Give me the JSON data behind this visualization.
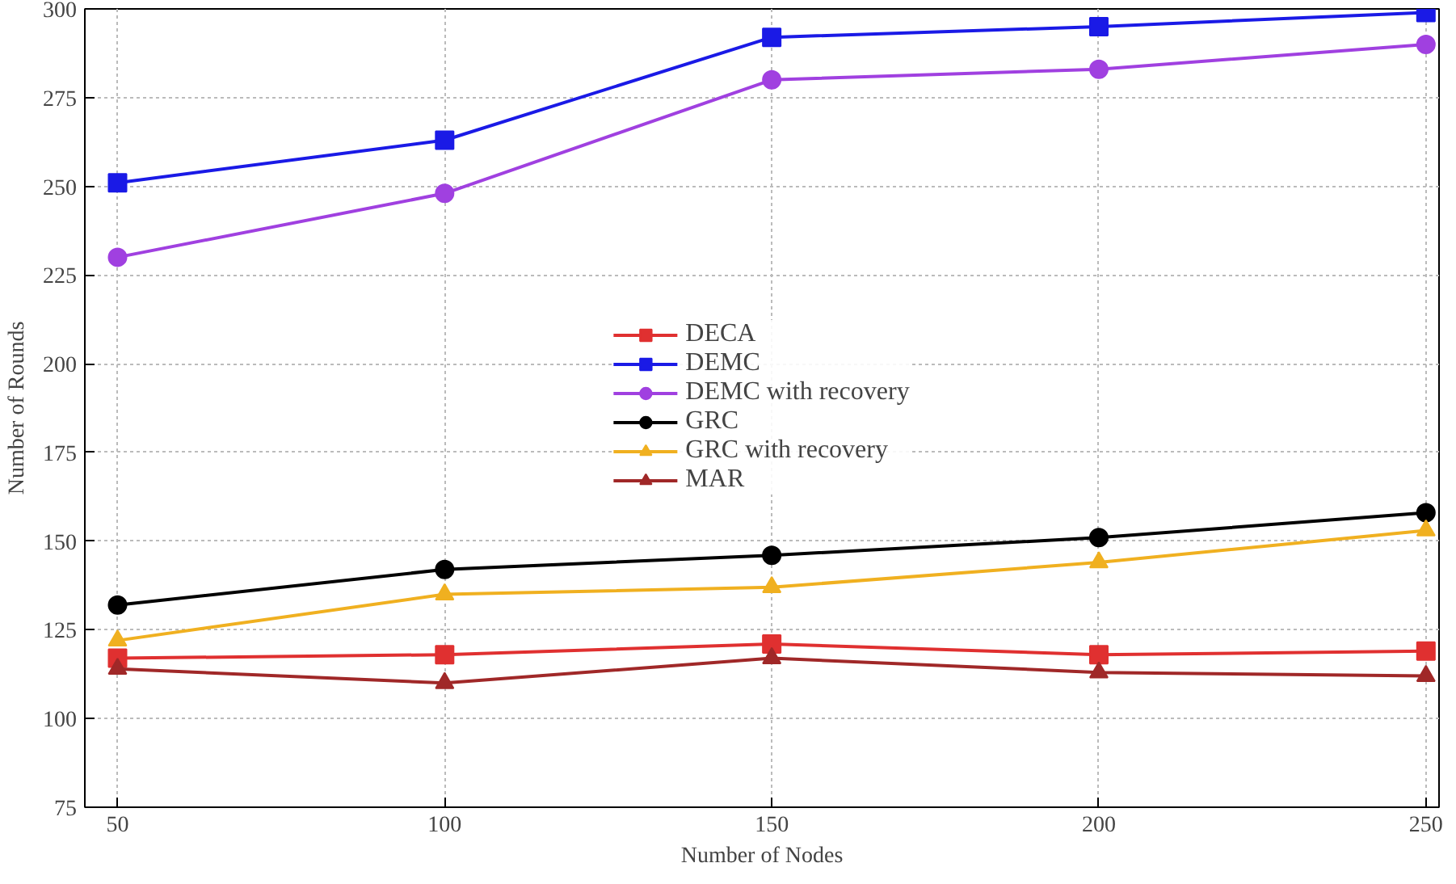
{
  "chart_data": {
    "type": "line",
    "xlabel": "Number of Nodes",
    "ylabel": "Number of Rounds",
    "x": [
      50,
      100,
      150,
      200,
      250
    ],
    "xlim": [
      45,
      252
    ],
    "xticks": [
      50,
      100,
      150,
      200,
      250
    ],
    "ylim": [
      75,
      300
    ],
    "yticks": [
      75,
      100,
      125,
      150,
      175,
      200,
      225,
      250,
      275,
      300
    ],
    "grid": true,
    "legend": "center",
    "line_style": "solid",
    "series": [
      {
        "name": "DECA",
        "color": "#e03030",
        "marker": "square",
        "values": [
          117,
          118,
          121,
          118,
          119
        ]
      },
      {
        "name": "DEMC",
        "color": "#1a1ae6",
        "marker": "square",
        "values": [
          251,
          263,
          292,
          295,
          299
        ]
      },
      {
        "name": "DEMC with recovery",
        "color": "#a040e0",
        "marker": "circle",
        "values": [
          230,
          248,
          280,
          283,
          290
        ]
      },
      {
        "name": "GRC",
        "color": "#000000",
        "marker": "circle",
        "values": [
          132,
          142,
          146,
          151,
          158
        ]
      },
      {
        "name": "GRC with recovery",
        "color": "#f0b020",
        "marker": "triangle",
        "values": [
          122,
          135,
          137,
          144,
          153
        ]
      },
      {
        "name": "MAR",
        "color": "#a02828",
        "marker": "triangle",
        "values": [
          114,
          110,
          117,
          113,
          112
        ]
      }
    ]
  }
}
